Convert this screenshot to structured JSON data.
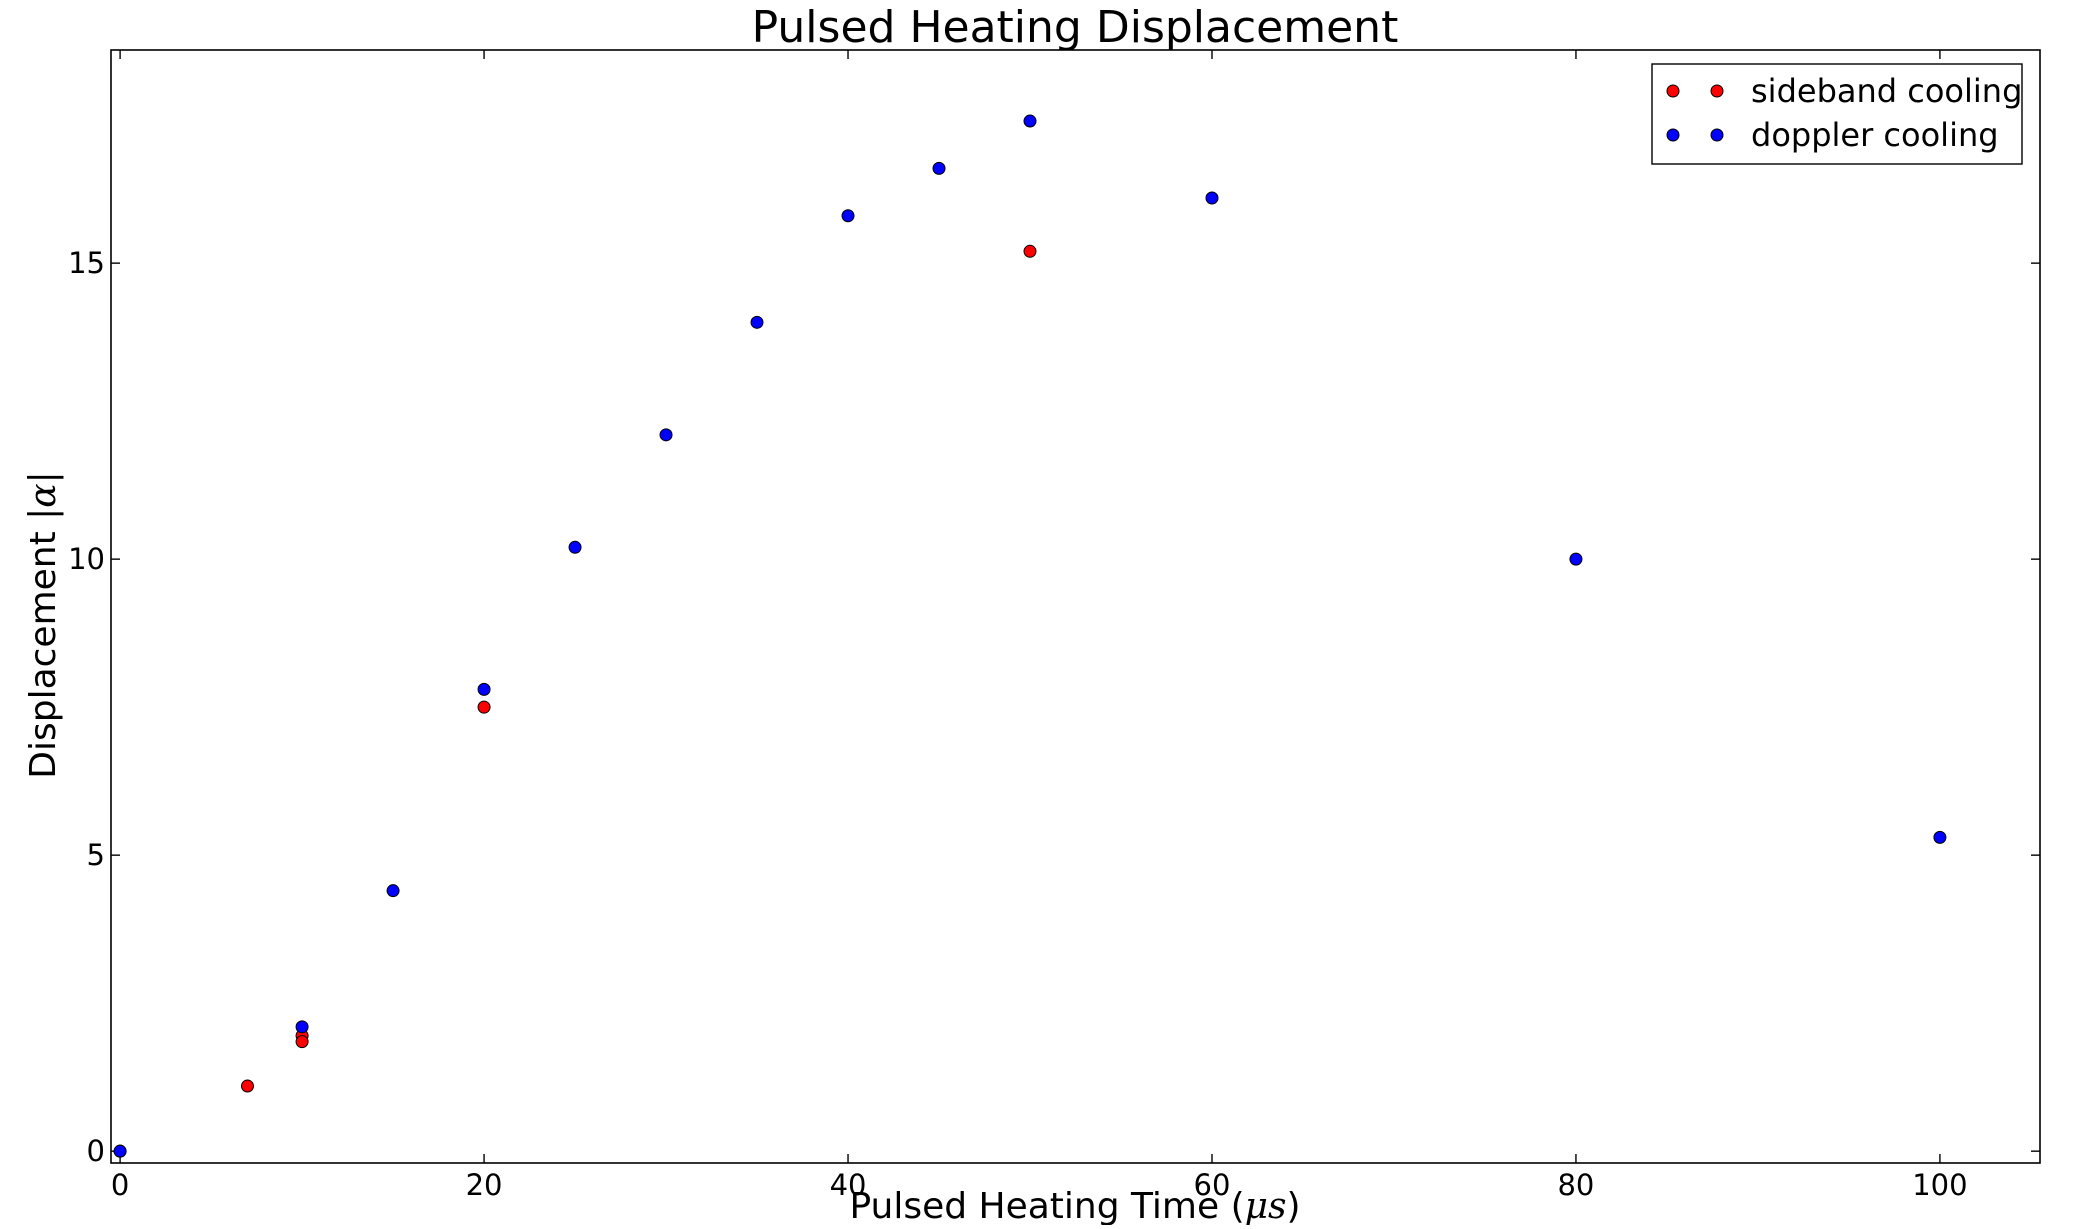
{
  "chart_data": {
    "type": "scatter",
    "title": "Pulsed Heating Displacement",
    "xlabel": {
      "prefix": "Pulsed Heating Time (",
      "symbol": "μs",
      "suffix": ")"
    },
    "ylabel": {
      "prefix": "Displacement ",
      "symbol": "|α|"
    },
    "xlim": [
      -0.5,
      105.5
    ],
    "ylim": [
      -0.2,
      18.6
    ],
    "xticks": [
      0,
      20,
      40,
      60,
      80,
      100
    ],
    "xtick_labels": [
      "0",
      "20",
      "40",
      "60",
      "80",
      "100"
    ],
    "yticks": [
      0,
      5,
      10,
      15
    ],
    "ytick_labels": [
      "0",
      "5",
      "10",
      "15"
    ],
    "grid": false,
    "legend_position": "top-right",
    "series": [
      {
        "name": "sideband cooling",
        "color": "#ff0000",
        "x": [
          0,
          7,
          10,
          10,
          20,
          50
        ],
        "y": [
          0.0,
          1.1,
          1.95,
          1.85,
          7.5,
          15.2
        ]
      },
      {
        "name": "doppler cooling",
        "color": "#0000ff",
        "x": [
          0,
          10,
          15,
          20,
          25,
          30,
          35,
          40,
          45,
          50,
          60,
          80,
          100
        ],
        "y": [
          0.0,
          2.1,
          4.4,
          7.8,
          10.2,
          12.1,
          14.0,
          15.8,
          16.6,
          17.4,
          16.1,
          10.0,
          5.3
        ]
      }
    ]
  }
}
